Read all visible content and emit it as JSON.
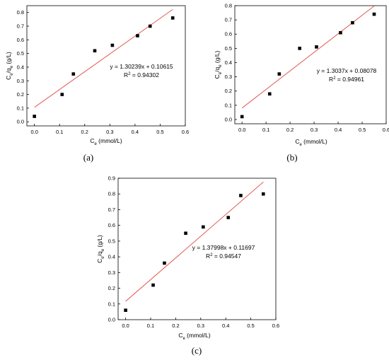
{
  "chart_data": [
    {
      "type": "scatter",
      "panel_label": "(a)",
      "x": [
        0.0,
        0.11,
        0.155,
        0.24,
        0.31,
        0.41,
        0.46,
        0.55
      ],
      "y": [
        0.04,
        0.2,
        0.35,
        0.52,
        0.56,
        0.63,
        0.7,
        0.76
      ],
      "fit": {
        "slope": 1.30239,
        "intercept": 0.10615,
        "x_range": [
          0.0,
          0.55
        ],
        "color": "#e0433a"
      },
      "equation": "y = 1.30239x + 0.10615",
      "r2": "R² = 0.94302",
      "xlabel": "Ce (mmol/L)",
      "ylabel": "Ce/qe (g/L)",
      "xlim": [
        -0.03,
        0.6
      ],
      "ylim": [
        -0.03,
        0.85
      ],
      "xticks": [
        "0.0",
        "0.1",
        "0.2",
        "0.3",
        "0.4",
        "0.5",
        "0.6"
      ],
      "yticks": [
        "0.0",
        "0.1",
        "0.2",
        "0.3",
        "0.4",
        "0.5",
        "0.6",
        "0.7",
        "0.8"
      ],
      "grid": false
    },
    {
      "type": "scatter",
      "panel_label": "(b)",
      "x": [
        0.0,
        0.115,
        0.155,
        0.24,
        0.31,
        0.41,
        0.46,
        0.55
      ],
      "y": [
        0.02,
        0.18,
        0.32,
        0.5,
        0.51,
        0.61,
        0.68,
        0.74
      ],
      "fit": {
        "slope": 1.3037,
        "intercept": 0.08078,
        "x_range": [
          0.0,
          0.55
        ],
        "color": "#e0433a"
      },
      "equation": "y = 1.3037x + 0.08078",
      "r2": "R² = 0.94961",
      "xlabel": "Ce (mmol/L)",
      "ylabel": "Ce/qe (g/L)",
      "xlim": [
        -0.03,
        0.6
      ],
      "ylim": [
        -0.03,
        0.8
      ],
      "xticks": [
        "0.0",
        "0.1",
        "0.2",
        "0.3",
        "0.4",
        "0.5",
        "0.6"
      ],
      "yticks": [
        "0.0",
        "0.1",
        "0.2",
        "0.3",
        "0.4",
        "0.5",
        "0.6",
        "0.7",
        "0.8"
      ],
      "grid": false
    },
    {
      "type": "scatter",
      "panel_label": "(c)",
      "x": [
        0.0,
        0.11,
        0.155,
        0.24,
        0.31,
        0.41,
        0.46,
        0.55
      ],
      "y": [
        0.06,
        0.22,
        0.36,
        0.55,
        0.59,
        0.65,
        0.79,
        0.8
      ],
      "fit": {
        "slope": 1.37998,
        "intercept": 0.11697,
        "x_range": [
          0.0,
          0.55
        ],
        "color": "#e0433a"
      },
      "equation": "y = 1.37998x + 0.11697",
      "r2": "R² = 0.94547",
      "xlabel": "Ce (mmol/L)",
      "ylabel": "Ce/qe (g/L)",
      "xlim": [
        -0.03,
        0.6
      ],
      "ylim": [
        0.0,
        0.9
      ],
      "xticks": [
        "0.0",
        "0.1",
        "0.2",
        "0.3",
        "0.4",
        "0.5",
        "0.6"
      ],
      "yticks": [
        "0.0",
        "0.1",
        "0.2",
        "0.3",
        "0.4",
        "0.5",
        "0.6",
        "0.7",
        "0.8",
        "0.9"
      ],
      "grid": false
    }
  ]
}
